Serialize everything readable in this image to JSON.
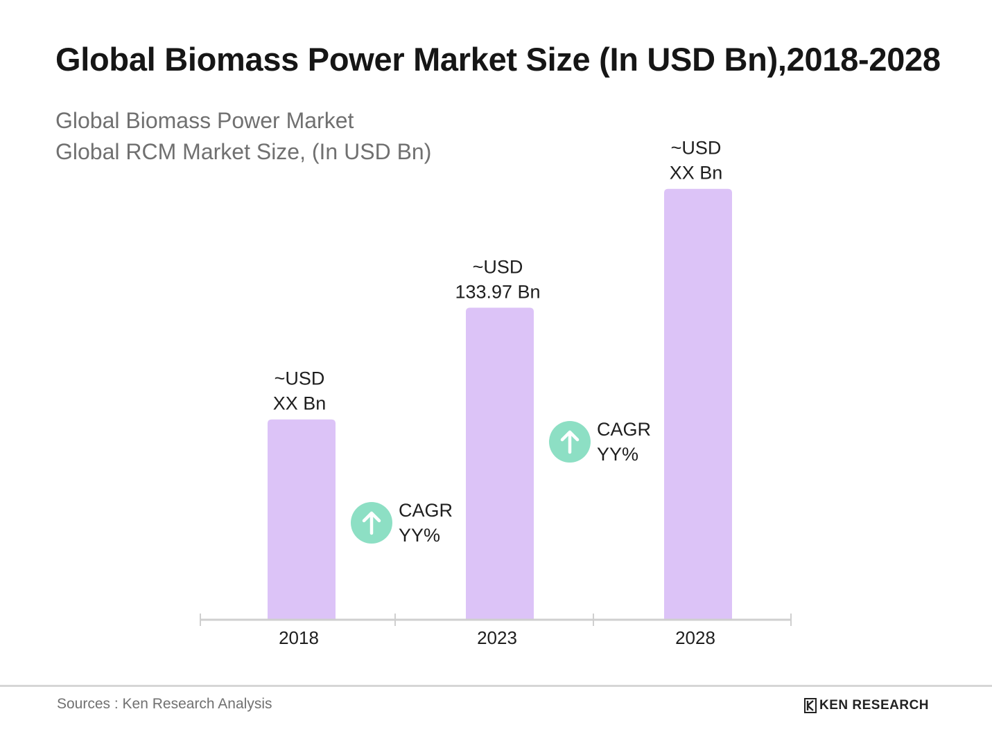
{
  "title": "Global Biomass Power Market Size (In USD Bn),2018-2028",
  "subtitle": [
    "Global Biomass Power Market",
    "Global RCM Market Size, (In USD Bn)"
  ],
  "chart_data": {
    "type": "bar",
    "categories": [
      "2018",
      "2023",
      "2028"
    ],
    "values": [
      86,
      133.97,
      185
    ],
    "bar_labels": [
      [
        "~USD",
        "XX Bn"
      ],
      [
        "~USD",
        "133.97 Bn"
      ],
      [
        "~USD",
        "XX Bn"
      ]
    ],
    "cagr_annotations": [
      {
        "line1": "CAGR",
        "line2": "YY%",
        "between": [
          "2018",
          "2023"
        ]
      },
      {
        "line1": "CAGR",
        "line2": "YY%",
        "between": [
          "2023",
          "2028"
        ]
      }
    ],
    "ylim": [
      0,
      220
    ],
    "bar_color": "#dcc3f7",
    "cagr_color": "#8ddfc4",
    "axis_color": "#cfcfcf",
    "grid": false,
    "legend": "none"
  },
  "footer": {
    "source": "Sources : Ken Research Analysis",
    "brand": "KEN RESEARCH",
    "brand_icon": "ken-research-logo-icon"
  }
}
